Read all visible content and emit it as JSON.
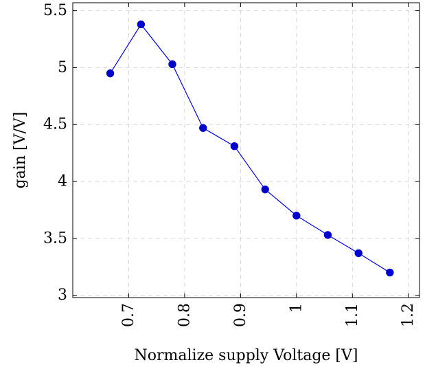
{
  "chart_data": {
    "type": "line",
    "title": "",
    "xlabel": "Normalize supply Voltage [V]",
    "ylabel": "gain [V/V]",
    "xlim": [
      0.6,
      1.22
    ],
    "ylim": [
      2.98,
      5.57
    ],
    "xticks": [
      0.7,
      0.8,
      0.9,
      1,
      1.1,
      1.2
    ],
    "xtick_labels": [
      "0.7",
      "0.8",
      "0.9",
      "1",
      "1.1",
      "1.2"
    ],
    "yticks": [
      3,
      3.5,
      4,
      4.5,
      5,
      5.5
    ],
    "ytick_labels": [
      "3",
      "3.5",
      "4",
      "4.5",
      "5",
      "5.5"
    ],
    "grid": true,
    "series": [
      {
        "color": "#0000ff",
        "marker": "circle",
        "x": [
          0.667,
          0.722,
          0.778,
          0.833,
          0.889,
          0.944,
          1.0,
          1.056,
          1.111,
          1.167
        ],
        "y": [
          4.95,
          5.38,
          5.03,
          4.47,
          4.31,
          3.93,
          3.7,
          3.53,
          3.37,
          3.2
        ]
      }
    ]
  }
}
